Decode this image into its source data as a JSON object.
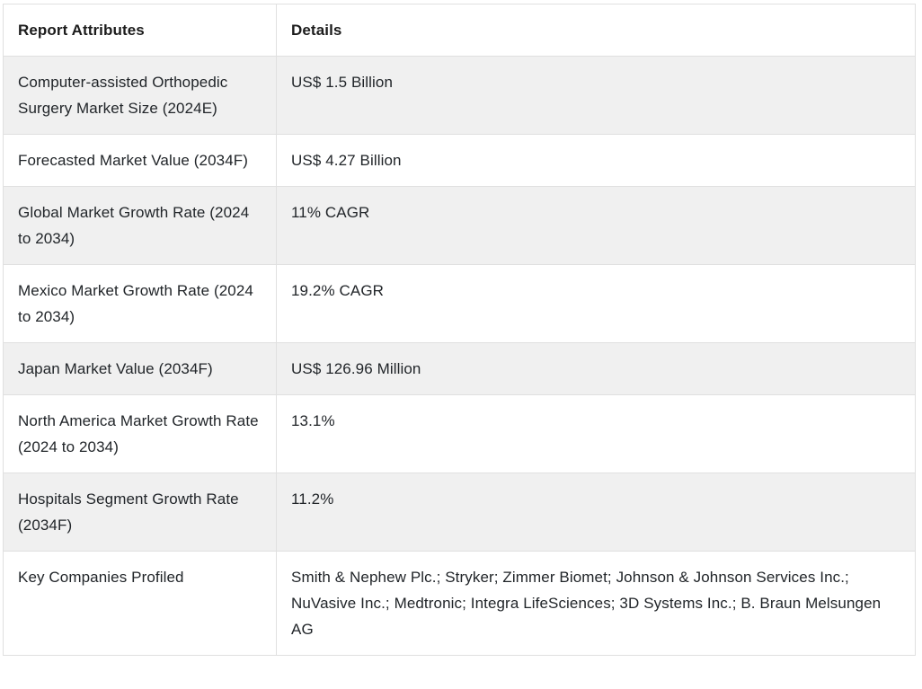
{
  "colors": {
    "row_alt_bg": "#f0f0f0",
    "row_bg": "#ffffff",
    "border": "#e0e0e0",
    "text": "#212529",
    "header_text": "#1c1c1c",
    "page_bg": "#ffffff"
  },
  "table": {
    "columns": [
      {
        "key": "attribute",
        "label": "Report Attributes"
      },
      {
        "key": "detail",
        "label": "Details"
      }
    ],
    "rows": [
      {
        "attribute": "Computer-assisted Orthopedic Surgery Market Size (2024E)",
        "detail": "US$ 1.5 Billion"
      },
      {
        "attribute": "Forecasted Market Value (2034F)",
        "detail": "US$ 4.27 Billion"
      },
      {
        "attribute": "Global Market Growth Rate (2024 to 2034)",
        "detail": "11% CAGR"
      },
      {
        "attribute": "Mexico Market Growth Rate (2024 to 2034)",
        "detail": "19.2% CAGR"
      },
      {
        "attribute": "Japan Market Value (2034F)",
        "detail": "US$ 126.96 Million"
      },
      {
        "attribute": "North America Market Growth Rate (2024 to 2034)",
        "detail": "13.1%"
      },
      {
        "attribute": "Hospitals Segment Growth Rate (2034F)",
        "detail": "11.2%"
      },
      {
        "attribute": "Key Companies Profiled",
        "detail": "Smith & Nephew Plc.; Stryker; Zimmer Biomet; Johnson & Johnson Services Inc.; NuVasive Inc.; Medtronic; Integra LifeSciences; 3D Systems Inc.; B. Braun Melsungen AG"
      }
    ]
  }
}
